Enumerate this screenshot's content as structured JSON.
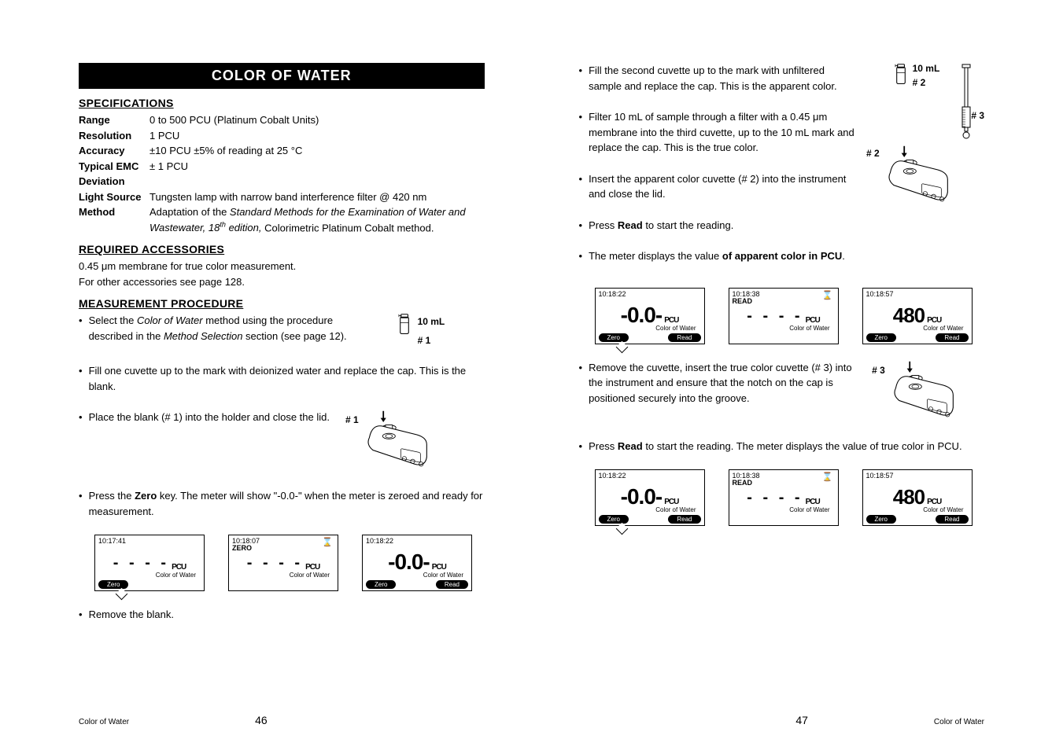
{
  "title": "COLOR OF WATER",
  "left": {
    "spec_heading": "SPECIFICATIONS",
    "specs": [
      {
        "label": "Range",
        "value": "0 to 500 PCU (Platinum Cobalt Units)"
      },
      {
        "label": "Resolution",
        "value": "1 PCU"
      },
      {
        "label": "Accuracy",
        "value": "±10 PCU ±5% of reading at 25 °C"
      },
      {
        "label": "Typical EMC Deviation",
        "value": "± 1 PCU"
      },
      {
        "label": "Light Source",
        "value": "Tungsten lamp with narrow band interference filter @ 420 nm"
      },
      {
        "label": "Method",
        "value_html": "Adaptation of the <span class=\"italic\">Standard Methods for the Examination of Water and Wastewater, 18<sup>th</sup> edition,</span> Colorimetric Platinum Cobalt method."
      }
    ],
    "acc_heading": "REQUIRED  ACCESSORIES",
    "acc_lines": [
      "0.45 μm membrane for true color measurement.",
      "For other accessories see page 128."
    ],
    "proc_heading": "MEASUREMENT  PROCEDURE",
    "steps": [
      {
        "html": "Select the <span class=\"italic\">Color of Water</span> method using the procedure described in the <span class=\"italic\">Method Selection</span> section (see page 12).",
        "fig": "cuvette",
        "fig_labels": [
          "10 mL",
          "# 1"
        ]
      },
      {
        "html": "Fill one cuvette up to the mark with deionized water and replace the cap. This is the blank."
      },
      {
        "html": "Place the blank (# 1) into the holder and close the lid.",
        "fig": "instrument",
        "fig_labels": [
          "# 1"
        ]
      },
      {
        "html": "Press the <span class=\"bold\">Zero</span> key. The meter will show \"-0.0-\" when the meter is zeroed and ready for measurement."
      },
      {
        "html": "Remove the blank."
      }
    ],
    "screens": [
      {
        "time": "10:17:41",
        "status": "",
        "sigma": false,
        "main_type": "dashes",
        "main": "- - - -",
        "unit": "PCU",
        "sub": "Color of Water",
        "left_btn": "Zero",
        "right_btn": "",
        "tail": true
      },
      {
        "time": "10:18:07",
        "status": "ZERO",
        "sigma": true,
        "main_type": "dashes",
        "main": "- - - -",
        "unit": "PCU",
        "sub": "Color of Water",
        "left_btn": "",
        "right_btn": ""
      },
      {
        "time": "10:18:22",
        "status": "",
        "sigma": false,
        "main_type": "value",
        "main": "-0.0-",
        "unit": "PCU",
        "sub": "Color of Water",
        "left_btn": "Zero",
        "right_btn": "Read"
      }
    ],
    "footer_label": "Color of Water",
    "page_num": "46"
  },
  "right": {
    "steps_a": [
      {
        "html": "Fill the second cuvette up to the mark with unfiltered sample and replace the cap. This is the apparent color."
      },
      {
        "html": "Filter 10 mL of sample through a filter with a 0.45 μm membrane into the third cuvette, up to the 10 mL mark and replace the cap. This is the true color."
      },
      {
        "html": "Insert the apparent color cuvette (# 2) into the instrument and close the lid."
      },
      {
        "html": "Press <span class=\"bold\">Read</span> to start the reading."
      },
      {
        "html": "The meter displays the value <span class=\"bold\">of apparent color in PCU</span>."
      }
    ],
    "fig_a_labels": {
      "cuvette2": "# 2",
      "ten_ml": "10 mL",
      "syringe3": "# 3",
      "instrument2": "# 2"
    },
    "screens_a": [
      {
        "time": "10:18:22",
        "status": "",
        "sigma": false,
        "main_type": "value",
        "main": "-0.0-",
        "unit": "PCU",
        "sub": "Color of Water",
        "left_btn": "Zero",
        "right_btn": "Read",
        "tail": true
      },
      {
        "time": "10:18:38",
        "status": "READ",
        "sigma": true,
        "main_type": "dashes",
        "main": "- - - -",
        "unit": "PCU",
        "sub": "Color of Water",
        "left_btn": "",
        "right_btn": ""
      },
      {
        "time": "10:18:57",
        "status": "",
        "sigma": false,
        "main_type": "big",
        "main": "480",
        "unit": "PCU",
        "sub": "Color of Water",
        "left_btn": "Zero",
        "right_btn": "Read"
      }
    ],
    "steps_b": [
      {
        "html": "Remove the cuvette, insert the true color cuvette (# 3) into the instrument and ensure that the notch on the cap is positioned securely into the groove.",
        "fig": "instrument",
        "fig_labels": [
          "# 3"
        ]
      },
      {
        "html": "Press <span class=\"bold\">Read</span> to start the reading. The meter displays the value of true color in PCU."
      }
    ],
    "screens_b": [
      {
        "time": "10:18:22",
        "status": "",
        "sigma": false,
        "main_type": "value",
        "main": "-0.0-",
        "unit": "PCU",
        "sub": "Color of Water",
        "left_btn": "Zero",
        "right_btn": "Read",
        "tail": true
      },
      {
        "time": "10:18:38",
        "status": "READ",
        "sigma": true,
        "main_type": "dashes",
        "main": "- - - -",
        "unit": "PCU",
        "sub": "Color of Water",
        "left_btn": "",
        "right_btn": ""
      },
      {
        "time": "10:18:57",
        "status": "",
        "sigma": false,
        "main_type": "big",
        "main": "480",
        "unit": "PCU",
        "sub": "Color of Water",
        "left_btn": "Zero",
        "right_btn": "Read"
      }
    ],
    "footer_label": "Color of Water",
    "page_num": "47"
  }
}
